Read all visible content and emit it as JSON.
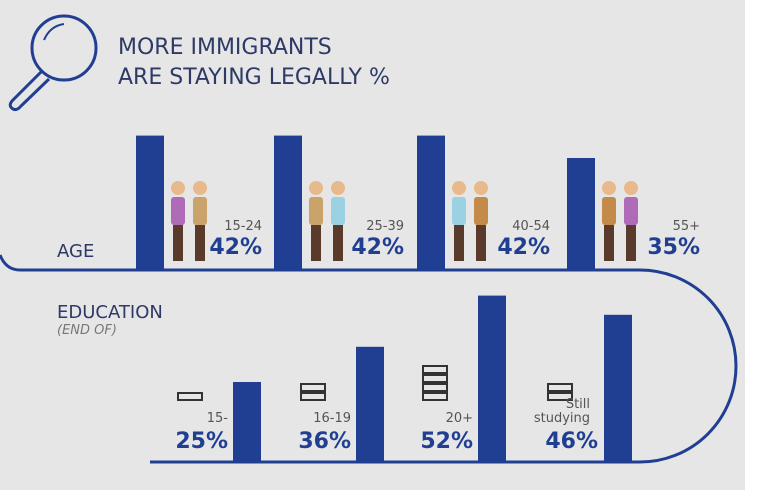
{
  "title": [
    "MORE IMMIGRANTS",
    "ARE STAYING LEGALLY %"
  ],
  "chart_data": [
    {
      "type": "bar",
      "title": "AGE",
      "categories": [
        "15-24",
        "25-39",
        "40-54",
        "55+"
      ],
      "values": [
        42,
        42,
        42,
        35
      ],
      "value_labels": [
        "42%",
        "42%",
        "42%",
        "35%"
      ],
      "color": "#213f92"
    },
    {
      "type": "bar",
      "title": "EDUCATION",
      "subtitle": "(END OF)",
      "categories": [
        "15-",
        "16-19",
        "20+",
        "Still studying"
      ],
      "values": [
        25,
        36,
        52,
        46
      ],
      "value_labels": [
        "25%",
        "36%",
        "52%",
        "46%"
      ],
      "color": "#213f92"
    }
  ]
}
